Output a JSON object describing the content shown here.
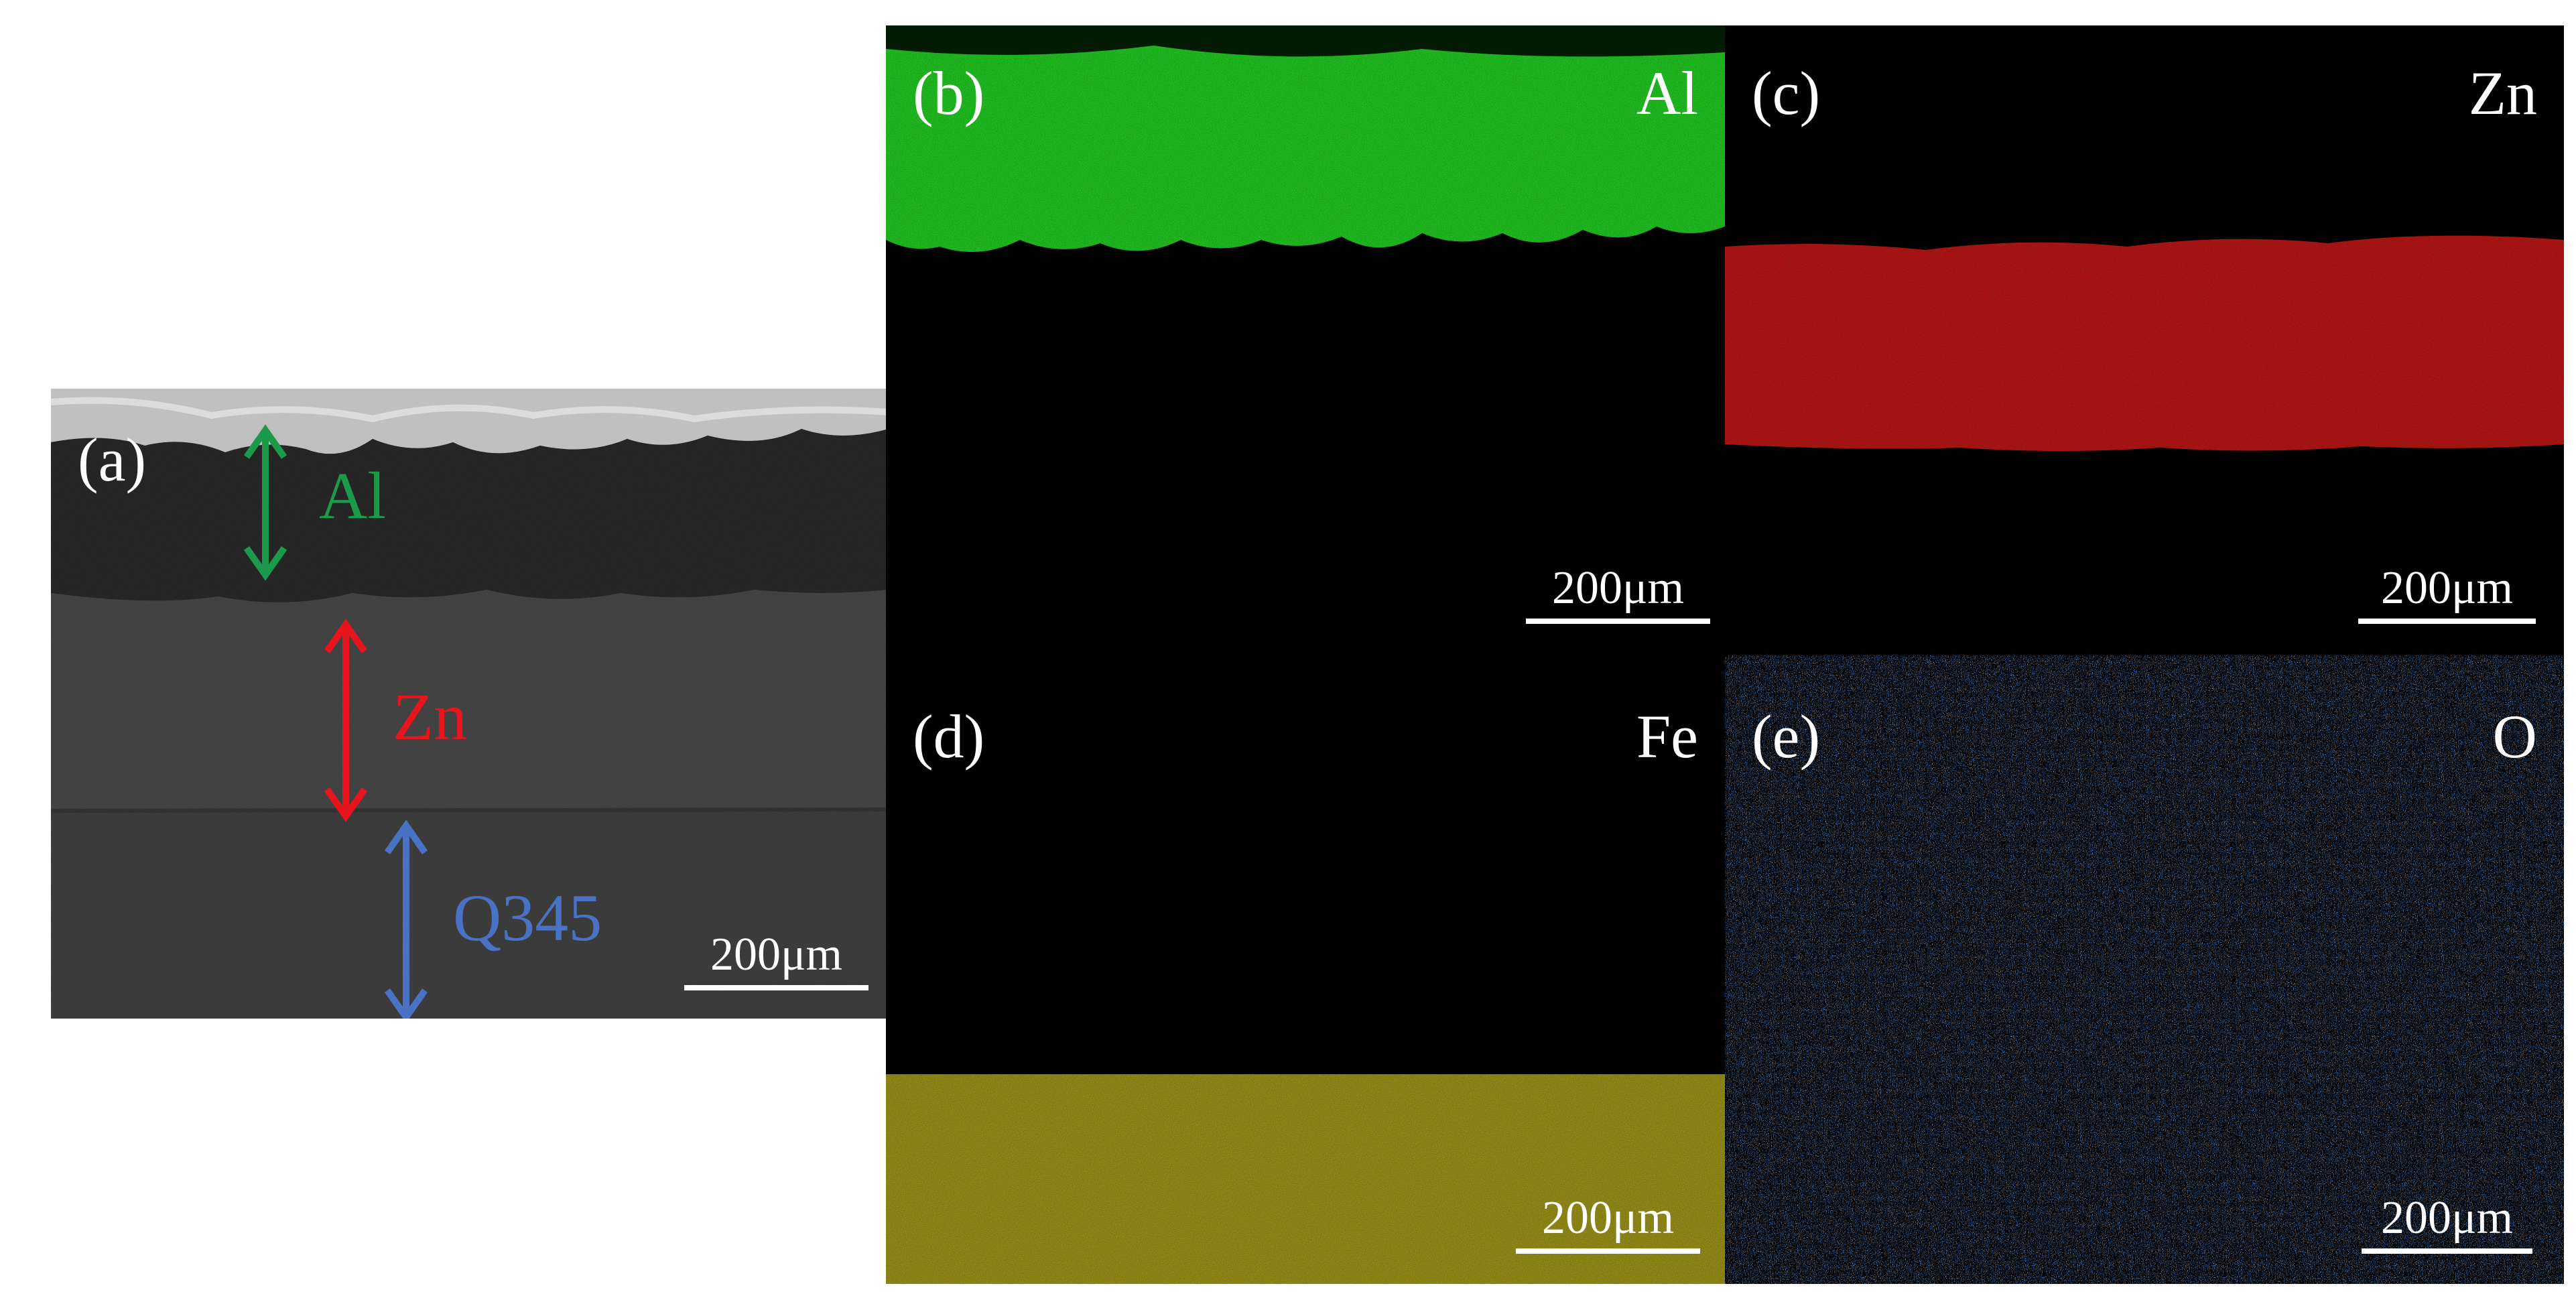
{
  "figure": {
    "panel_a": {
      "label": "(a)",
      "layers": [
        {
          "name": "Al",
          "color": "#1a9a4a"
        },
        {
          "name": "Zn",
          "color": "#e8141b"
        },
        {
          "name": "Q345",
          "color": "#4a72c4"
        }
      ],
      "scale_bar": "200μm"
    },
    "maps": [
      {
        "label": "(b)",
        "element": "Al",
        "color": "#22dd22",
        "scale_bar": "200μm"
      },
      {
        "label": "(c)",
        "element": "Zn",
        "color": "#e02020",
        "scale_bar": "200μm"
      },
      {
        "label": "(d)",
        "element": "Fe",
        "color": "#b8b020",
        "scale_bar": "200μm"
      },
      {
        "label": "(e)",
        "element": "O",
        "color": "#2a78e0",
        "scale_bar": "200μm"
      }
    ]
  }
}
